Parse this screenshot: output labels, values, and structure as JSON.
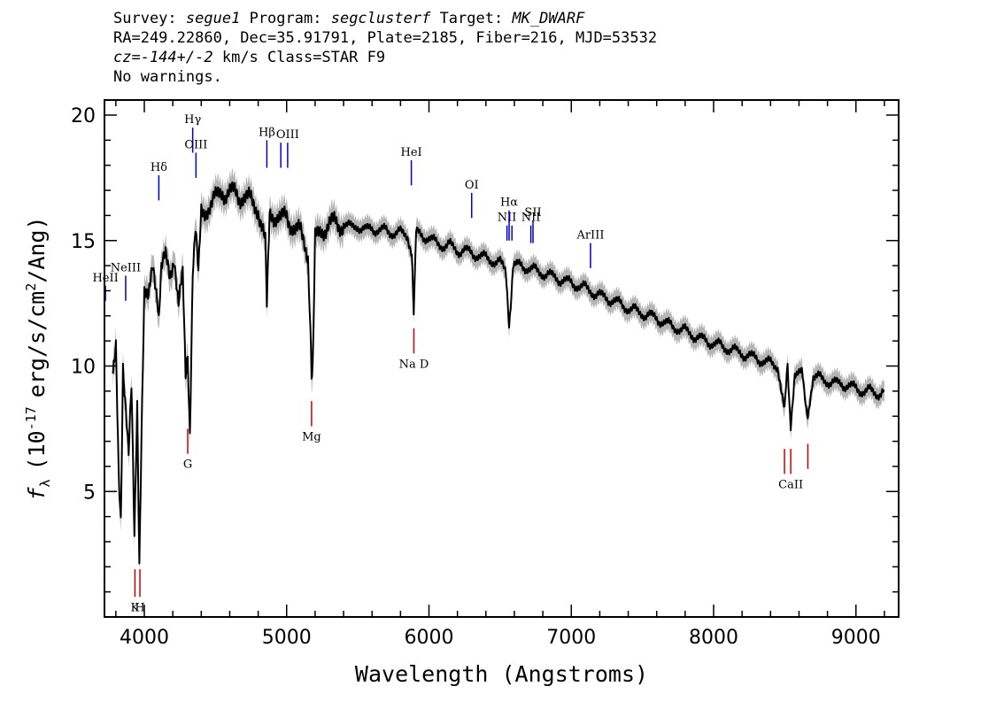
{
  "header": {
    "line1": {
      "survey_label": "Survey:",
      "survey": "segue1",
      "program_label": "Program:",
      "program": "segclusterf",
      "target_label": "Target:",
      "target": "MK_DWARF"
    },
    "line2": "RA=249.22860, Dec=35.91791, Plate=2185, Fiber=216, MJD=53532",
    "line3": {
      "cz": "cz=-144+/-2",
      "rest": "km/s Class=STAR F9"
    },
    "line4": "No warnings."
  },
  "colors": {
    "spectrum": "#000000",
    "error": "#b4b4b4",
    "emission": "#0000cc",
    "absorption": "#cc0000"
  },
  "chart_data": {
    "type": "line",
    "xlabel": "Wavelength (Angstroms)",
    "ylabel": "f_λ (10^-17 erg/s/cm^2/Ang)",
    "ylabel_parts": {
      "f": "f",
      "sub": "λ",
      "pre": "(10",
      "exp": "-17",
      "mid": "erg/s/cm",
      "exp2": "2",
      "post": "/Ang)"
    },
    "xlim": [
      3720,
      9300
    ],
    "ylim": [
      0,
      20.6
    ],
    "x_ticks": [
      4000,
      5000,
      6000,
      7000,
      8000,
      9000
    ],
    "x_tick_labels": [
      "4000",
      "5000",
      "6000",
      "7000",
      "8000",
      "9000"
    ],
    "y_ticks": [
      5,
      10,
      15,
      20
    ],
    "y_tick_labels": [
      "5",
      "10",
      "15",
      "20"
    ],
    "grid": false,
    "series": [
      {
        "x": [
          3780,
          3800,
          3820,
          3835,
          3850,
          3870,
          3890,
          3910,
          3930,
          3950,
          3965,
          3980,
          4000,
          4030,
          4060,
          4090,
          4102,
          4120,
          4150,
          4180,
          4210,
          4240,
          4270,
          4290,
          4305,
          4320,
          4340,
          4360,
          4380,
          4400,
          4430,
          4460,
          4500,
          4550,
          4600,
          4650,
          4700,
          4750,
          4800,
          4830,
          4850,
          4861,
          4880,
          4920,
          4960,
          5000,
          5050,
          5100,
          5150,
          5167,
          5175,
          5183,
          5200,
          5230,
          5270,
          5300,
          5350,
          5400,
          5450,
          5500,
          5550,
          5600,
          5650,
          5700,
          5750,
          5800,
          5850,
          5880,
          5893,
          5910,
          5950,
          6000,
          6050,
          6100,
          6150,
          6200,
          6250,
          6300,
          6350,
          6400,
          6450,
          6500,
          6540,
          6563,
          6590,
          6650,
          6700,
          6750,
          6800,
          6900,
          7000,
          7100,
          7200,
          7300,
          7400,
          7500,
          7600,
          7700,
          7800,
          7900,
          8000,
          8100,
          8200,
          8300,
          8400,
          8450,
          8498,
          8520,
          8542,
          8570,
          8620,
          8662,
          8700,
          8750,
          8800,
          8850,
          8900,
          8950,
          9000,
          9050,
          9100,
          9150,
          9200
        ],
        "y": [
          9.5,
          10.5,
          5.5,
          3.9,
          10.2,
          8.5,
          6.5,
          9.0,
          3.0,
          8.5,
          2.3,
          7.5,
          13.0,
          12.5,
          14.0,
          13.0,
          11.5,
          14.0,
          14.2,
          13.5,
          14.5,
          12.5,
          13.5,
          9.5,
          10.5,
          7.5,
          14.0,
          15.5,
          13.5,
          16.0,
          16.2,
          16.5,
          16.6,
          17.0,
          16.9,
          16.8,
          16.8,
          16.5,
          16.3,
          15.5,
          14.8,
          12.5,
          16.0,
          16.1,
          15.8,
          15.9,
          15.6,
          15.2,
          14.5,
          11.0,
          9.8,
          10.2,
          15.0,
          15.2,
          15.6,
          15.7,
          15.6,
          15.7,
          15.5,
          15.6,
          15.4,
          15.5,
          15.4,
          15.4,
          15.3,
          15.3,
          15.2,
          14.5,
          12.3,
          15.3,
          15.2,
          15.1,
          14.9,
          14.8,
          14.8,
          14.6,
          14.6,
          14.5,
          14.4,
          14.3,
          14.2,
          14.1,
          13.8,
          11.4,
          14.0,
          14.0,
          13.9,
          13.8,
          13.7,
          13.5,
          13.3,
          13.1,
          12.8,
          12.6,
          12.3,
          12.1,
          11.9,
          11.6,
          11.4,
          11.1,
          10.9,
          10.7,
          10.5,
          10.3,
          10.1,
          10.0,
          8.5,
          9.9,
          7.6,
          9.8,
          9.7,
          8.0,
          9.6,
          9.5,
          9.4,
          9.3,
          9.3,
          9.2,
          9.1,
          9.0,
          9.0,
          8.9,
          9.0
        ]
      }
    ],
    "emission_lines": [
      {
        "name": "HeII",
        "label": "HeII",
        "wavelength": 3727,
        "y_top": 13.2,
        "y_bottom": 12.6
      },
      {
        "name": "NeIII",
        "label": "NeIII",
        "wavelength": 3869,
        "y_top": 13.6,
        "y_bottom": 12.6
      },
      {
        "name": "Hdelta",
        "label": "Hδ",
        "wavelength": 4102,
        "y_top": 17.6,
        "y_bottom": 16.6
      },
      {
        "name": "Hgamma",
        "label": "Hγ",
        "wavelength": 4340,
        "y_top": 19.5,
        "y_bottom": 18.5
      },
      {
        "name": "OIII-4363",
        "label": "OIII",
        "wavelength": 4363,
        "y_top": 18.5,
        "y_bottom": 17.5
      },
      {
        "name": "Hbeta",
        "label": "Hβ",
        "wavelength": 4861,
        "y_top": 19.0,
        "y_bottom": 17.9
      },
      {
        "name": "OIII-4959",
        "label": "",
        "wavelength": 4959,
        "y_top": 18.9,
        "y_bottom": 17.9
      },
      {
        "name": "OIII-5007",
        "label": "OIII",
        "wavelength": 5007,
        "y_top": 18.9,
        "y_bottom": 17.9
      },
      {
        "name": "HeI",
        "label": "HeI",
        "wavelength": 5876,
        "y_top": 18.2,
        "y_bottom": 17.2
      },
      {
        "name": "OI",
        "label": "OI",
        "wavelength": 6300,
        "y_top": 16.9,
        "y_bottom": 15.9
      },
      {
        "name": "NII-6548",
        "label": "NII",
        "wavelength": 6548,
        "y_top": 15.6,
        "y_bottom": 15.0
      },
      {
        "name": "Halpha",
        "label": "Hα",
        "wavelength": 6563,
        "y_top": 16.2,
        "y_bottom": 15.0
      },
      {
        "name": "NII-6583",
        "label": "",
        "wavelength": 6583,
        "y_top": 15.6,
        "y_bottom": 15.0
      },
      {
        "name": "SII-6716",
        "label": "NII",
        "wavelength": 6716,
        "y_top": 15.6,
        "y_bottom": 14.9
      },
      {
        "name": "SII-6731",
        "label": "SII",
        "wavelength": 6731,
        "y_top": 15.8,
        "y_bottom": 14.9
      },
      {
        "name": "ArIII",
        "label": "ArIII",
        "wavelength": 7135,
        "y_top": 14.9,
        "y_bottom": 13.9
      }
    ],
    "absorption_lines": [
      {
        "name": "K",
        "label": "K",
        "wavelength": 3934,
        "y_top": 1.9,
        "y_bottom": 0.8
      },
      {
        "name": "H",
        "label": "H",
        "wavelength": 3969,
        "y_top": 1.9,
        "y_bottom": 0.8
      },
      {
        "name": "G",
        "label": "G",
        "wavelength": 4305,
        "y_top": 7.5,
        "y_bottom": 6.5
      },
      {
        "name": "Mg",
        "label": "Mg",
        "wavelength": 5175,
        "y_top": 8.6,
        "y_bottom": 7.6
      },
      {
        "name": "NaD",
        "label": "Na D",
        "wavelength": 5894,
        "y_top": 11.5,
        "y_bottom": 10.5
      },
      {
        "name": "CaII-8498",
        "label": "",
        "wavelength": 8498,
        "y_top": 6.7,
        "y_bottom": 5.7
      },
      {
        "name": "CaII-8542",
        "label": "CaII",
        "wavelength": 8542,
        "y_top": 6.7,
        "y_bottom": 5.7
      },
      {
        "name": "CaII-8662",
        "label": "",
        "wavelength": 8662,
        "y_top": 6.9,
        "y_bottom": 5.9
      }
    ]
  }
}
